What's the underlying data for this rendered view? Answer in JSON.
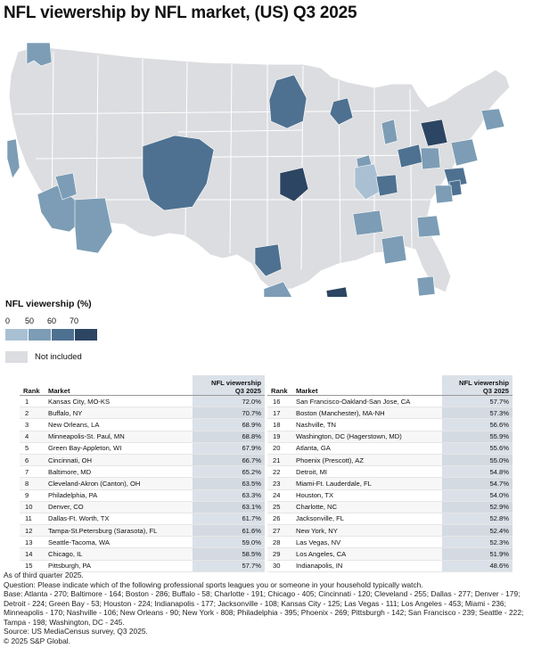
{
  "title": "NFL viewership by NFL market, (US) Q3 2025",
  "colors": {
    "background_land": "#dcdde0",
    "border": "#ffffff",
    "bins": [
      "#a9c0d2",
      "#7c9db5",
      "#4e7191",
      "#2c4562"
    ]
  },
  "legend": {
    "title": "NFL viewership (%)",
    "ticks": [
      "0",
      "50",
      "60",
      "70"
    ],
    "not_included": "Not included"
  },
  "table": {
    "header": {
      "rank": "Rank",
      "market": "Market",
      "value_line1": "NFL viewership",
      "value_line2": "Q3 2025"
    },
    "left": [
      {
        "rank": "1",
        "market": "Kansas City, MO-KS",
        "value": "72.0%"
      },
      {
        "rank": "2",
        "market": "Buffalo, NY",
        "value": "70.7%"
      },
      {
        "rank": "3",
        "market": "New Orleans, LA",
        "value": "68.9%"
      },
      {
        "rank": "4",
        "market": "Minneapolis-St. Paul, MN",
        "value": "68.8%"
      },
      {
        "rank": "5",
        "market": "Green Bay-Appleton, WI",
        "value": "67.9%"
      },
      {
        "rank": "6",
        "market": "Cincinnati, OH",
        "value": "66.7%"
      },
      {
        "rank": "7",
        "market": "Baltimore, MD",
        "value": "65.2%"
      },
      {
        "rank": "8",
        "market": "Cleveland-Akron (Canton), OH",
        "value": "63.5%"
      },
      {
        "rank": "9",
        "market": "Philadelphia, PA",
        "value": "63.3%"
      },
      {
        "rank": "10",
        "market": "Denver, CO",
        "value": "63.1%"
      },
      {
        "rank": "11",
        "market": "Dallas-Ft. Worth, TX",
        "value": "61.7%"
      },
      {
        "rank": "12",
        "market": "Tampa-St.Petersburg (Sarasota), FL",
        "value": "61.6%"
      },
      {
        "rank": "13",
        "market": "Seattle-Tacoma, WA",
        "value": "59.0%"
      },
      {
        "rank": "14",
        "market": "Chicago, IL",
        "value": "58.5%"
      },
      {
        "rank": "15",
        "market": "Pittsburgh, PA",
        "value": "57.7%"
      }
    ],
    "right": [
      {
        "rank": "16",
        "market": "San Francisco-Oakland-San Jose, CA",
        "value": "57.7%"
      },
      {
        "rank": "17",
        "market": "Boston (Manchester), MA-NH",
        "value": "57.3%"
      },
      {
        "rank": "18",
        "market": "Nashville, TN",
        "value": "56.6%"
      },
      {
        "rank": "19",
        "market": "Washington, DC (Hagerstown, MD)",
        "value": "55.9%"
      },
      {
        "rank": "20",
        "market": "Atlanta, GA",
        "value": "55.6%"
      },
      {
        "rank": "21",
        "market": "Phoenix (Prescott), AZ",
        "value": "55.0%"
      },
      {
        "rank": "22",
        "market": "Detroit, MI",
        "value": "54.8%"
      },
      {
        "rank": "23",
        "market": "Miami-Ft. Lauderdale, FL",
        "value": "54.7%"
      },
      {
        "rank": "24",
        "market": "Houston, TX",
        "value": "54.0%"
      },
      {
        "rank": "25",
        "market": "Charlotte, NC",
        "value": "52.9%"
      },
      {
        "rank": "26",
        "market": "Jacksonville, FL",
        "value": "52.8%"
      },
      {
        "rank": "27",
        "market": "New York, NY",
        "value": "52.4%"
      },
      {
        "rank": "28",
        "market": "Las Vegas, NV",
        "value": "52.3%"
      },
      {
        "rank": "29",
        "market": "Los Angeles, CA",
        "value": "51.9%"
      },
      {
        "rank": "30",
        "market": "Indianapolis, IN",
        "value": "48.6%"
      }
    ]
  },
  "footnotes": {
    "line1": "As of third quarter 2025.",
    "line2": "Question: Please indicate which of the following professional sports leagues you or someone in your household typically watch.",
    "line3": "Base: Atlanta - 270; Baltimore - 164; Boston - 286; Buffalo - 58; Charlotte - 191; Chicago - 405; Cincinnati - 120; Cleveland - 255; Dallas - 277; Denver - 179; Detroit - 224; Green Bay - 53; Houston - 224; Indianapolis - 177; Jacksonville - 108; Kansas City - 125; Las Vegas - 111; Los Angeles - 453; Miami - 236; Minneapolis - 170; Nashville - 106; New Orleans - 90; New York - 808; Philadelphia - 395; Phoenix - 269; Pittsburgh - 142; San Francisco - 239; Seattle - 222; Tampa - 198; Washington, DC - 245.",
    "line4": "Source: US MediaCensus survey, Q3 2025.",
    "line5": "© 2025 S&P Global."
  }
}
